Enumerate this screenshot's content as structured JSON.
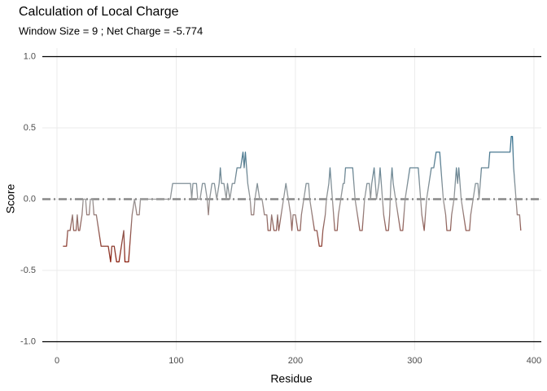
{
  "chart_data": {
    "type": "line",
    "title": "Calculation of Local Charge",
    "subtitle": "Window Size = 9 ; Net Charge = -5.774",
    "xlabel": "Residue",
    "ylabel": "Score",
    "xlim": [
      -12.3,
      406.2
    ],
    "ylim": [
      -1.06,
      1.06
    ],
    "xticks": [
      0,
      100,
      200,
      300,
      400
    ],
    "yticks": [
      {
        "value": -1,
        "label": "-1.0"
      },
      {
        "value": -0.5,
        "label": "-0.5"
      },
      {
        "value": 0,
        "label": "0.0"
      },
      {
        "value": 0.5,
        "label": "0.5"
      },
      {
        "value": 1,
        "label": "1.0"
      }
    ],
    "grid": true,
    "reference_lines": [
      -1,
      1
    ],
    "zero_line": 0,
    "colors": {
      "low": "#8b2010",
      "mid": "#999999",
      "high": "#2f6f8f"
    },
    "x": [
      5,
      8,
      9,
      11,
      13,
      14,
      16,
      17,
      18,
      19,
      21,
      22,
      24,
      25,
      27,
      28,
      30,
      31,
      33,
      35,
      37,
      43,
      45,
      46,
      48,
      50,
      52,
      54,
      56,
      57,
      60,
      61,
      62,
      63,
      65,
      67,
      69,
      70,
      95,
      97,
      110,
      112,
      113,
      114,
      117,
      118,
      120,
      122,
      124,
      126,
      127,
      128,
      130,
      132,
      134,
      136,
      137,
      138,
      140,
      142,
      143,
      145,
      147,
      149,
      151,
      154,
      156,
      157,
      158,
      159,
      160,
      162,
      163,
      165,
      166,
      168,
      170,
      172,
      174,
      176,
      177,
      179,
      180,
      182,
      184,
      185,
      186,
      188,
      190,
      192,
      194,
      196,
      197,
      198,
      200,
      202,
      204,
      205,
      207,
      209,
      211,
      212,
      214,
      216,
      218,
      220,
      222,
      223,
      225,
      226,
      228,
      229,
      230,
      231,
      232,
      233,
      235,
      236,
      238,
      240,
      241,
      242,
      248,
      249,
      250,
      252,
      254,
      256,
      257,
      258,
      260,
      262,
      263,
      264,
      266,
      267,
      268,
      270,
      271,
      272,
      273,
      274,
      276,
      278,
      279,
      280,
      281,
      282,
      284,
      286,
      288,
      290,
      291,
      292,
      294,
      296,
      303,
      304,
      305,
      306,
      308,
      309,
      310,
      312,
      314,
      316,
      318,
      321,
      322,
      323,
      324,
      326,
      327,
      330,
      331,
      333,
      334,
      335,
      336,
      337,
      338,
      339,
      341,
      343,
      346,
      347,
      349,
      351,
      353,
      354,
      355,
      356,
      362,
      363,
      372,
      374,
      380,
      381,
      382,
      383,
      384,
      385,
      386,
      388,
      389
    ],
    "values": [
      -0.33,
      -0.33,
      -0.22,
      -0.22,
      -0.11,
      -0.22,
      -0.22,
      -0.11,
      -0.22,
      -0.22,
      -0.11,
      0,
      0,
      -0.11,
      -0.11,
      0,
      0,
      -0.11,
      -0.11,
      -0.22,
      -0.33,
      -0.33,
      -0.44,
      -0.33,
      -0.33,
      -0.44,
      -0.44,
      -0.33,
      -0.22,
      -0.44,
      -0.44,
      -0.33,
      -0.22,
      -0.11,
      0,
      -0.11,
      -0.11,
      0,
      0,
      0.11,
      0.11,
      0.11,
      0,
      0.11,
      0.11,
      0,
      0,
      0.11,
      0.11,
      0,
      -0.11,
      0,
      0.11,
      0.11,
      0,
      0.11,
      0.22,
      0.11,
      0.11,
      0,
      0.11,
      0,
      0.11,
      0.11,
      0.22,
      0.22,
      0.33,
      0.22,
      0.33,
      0.22,
      0.11,
      0,
      -0.11,
      -0.11,
      0,
      0.11,
      0,
      0,
      -0.11,
      -0.11,
      -0.22,
      -0.22,
      -0.11,
      -0.22,
      -0.22,
      -0.11,
      -0.22,
      -0.11,
      0,
      0.11,
      0,
      -0.11,
      -0.22,
      -0.11,
      -0.11,
      -0.22,
      -0.22,
      -0.11,
      0,
      0.11,
      0.11,
      0,
      -0.11,
      -0.22,
      -0.22,
      -0.33,
      -0.33,
      -0.22,
      -0.11,
      0,
      0.11,
      0.22,
      0.11,
      0,
      -0.11,
      -0.22,
      -0.22,
      -0.11,
      0,
      0.11,
      0.11,
      0.22,
      0.22,
      0.11,
      0,
      -0.11,
      -0.22,
      -0.22,
      -0.11,
      0,
      0.11,
      0.11,
      0,
      0.11,
      0.22,
      0.11,
      0,
      0.11,
      0.22,
      0.11,
      0,
      -0.11,
      -0.22,
      -0.22,
      -0.11,
      0.11,
      0.22,
      0.11,
      0,
      -0.11,
      -0.22,
      -0.22,
      -0.11,
      0,
      0.11,
      0.22,
      0.22,
      0.11,
      0,
      -0.11,
      -0.22,
      -0.11,
      0,
      0.11,
      0.22,
      0.22,
      0.33,
      0.33,
      0.22,
      0.11,
      0,
      -0.11,
      -0.22,
      -0.22,
      -0.11,
      0,
      0.11,
      0.22,
      0.11,
      0.22,
      0.11,
      0,
      -0.11,
      -0.22,
      -0.22,
      -0.11,
      0,
      0.11,
      0.11,
      0,
      0.11,
      0.22,
      0.22,
      0.33,
      0.33,
      0.33,
      0.33,
      0.44,
      0.44,
      0.22,
      0.11,
      0,
      -0.11,
      -0.11,
      -0.22
    ]
  }
}
